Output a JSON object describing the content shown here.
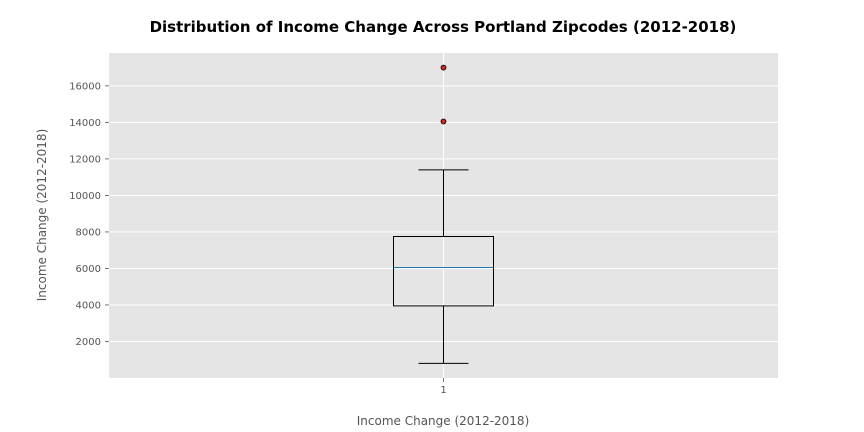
{
  "chart_data": {
    "type": "box",
    "title": "Distribution of Income Change Across Portland Zipcodes (2012-2018)",
    "xlabel": "Income Change (2012-2018)",
    "ylabel": "Income Change (2012-2018)",
    "categories": [
      "1"
    ],
    "ylim": [
      0,
      17800
    ],
    "yticks": [
      2000,
      4000,
      6000,
      8000,
      10000,
      12000,
      14000,
      16000
    ],
    "ytick_labels": [
      "2000",
      "4000",
      "6000",
      "8000",
      "10000",
      "12000",
      "14000",
      "16000"
    ],
    "grid": true,
    "boxes": [
      {
        "category": "1",
        "whisker_low": 800,
        "q1": 3950,
        "median": 6050,
        "q3": 7750,
        "whisker_high": 11400,
        "outliers": [
          14050,
          17000
        ]
      }
    ],
    "colors": {
      "background": "#e5e5e5",
      "grid": "#ffffff",
      "box": "#000000",
      "median": "#1f77b4",
      "outlier_fill": "#d62728"
    }
  }
}
